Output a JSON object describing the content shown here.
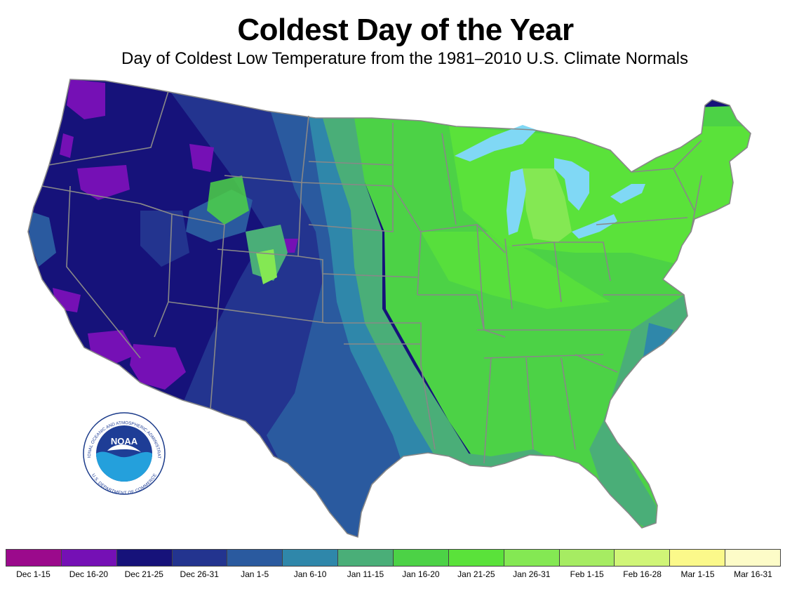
{
  "title": "Coldest Day of the Year",
  "subtitle": "Day of Coldest Low Temperature from the 1981–2010 U.S. Climate Normals",
  "logo": {
    "name": "NOAA",
    "ring_text": "NATIONAL OCEANIC AND ATMOSPHERIC ADMINISTRATION",
    "bottom_text": "U.S. DEPARTMENT OF COMMERCE"
  },
  "legend": [
    {
      "label": "Dec 1-15",
      "color": "#9b0a8c"
    },
    {
      "label": "Dec 16-20",
      "color": "#7510b5"
    },
    {
      "label": "Dec 21-25",
      "color": "#16127a"
    },
    {
      "label": "Dec 26-31",
      "color": "#23348f"
    },
    {
      "label": "Jan 1-5",
      "color": "#2a5a9f"
    },
    {
      "label": "Jan 6-10",
      "color": "#2f87aa"
    },
    {
      "label": "Jan 11-15",
      "color": "#4aae78"
    },
    {
      "label": "Jan 16-20",
      "color": "#4cd246"
    },
    {
      "label": "Jan 21-25",
      "color": "#5ae23a"
    },
    {
      "label": "Jan 26-31",
      "color": "#84e853"
    },
    {
      "label": "Feb 1-15",
      "color": "#a6ec62"
    },
    {
      "label": "Feb 16-28",
      "color": "#d0f577"
    },
    {
      "label": "Mar 1-15",
      "color": "#fbf98a"
    },
    {
      "label": "Mar 16-31",
      "color": "#fdfcc8"
    }
  ],
  "colors": {
    "lakes": "#80d8f5",
    "state_borders": "#888888"
  }
}
